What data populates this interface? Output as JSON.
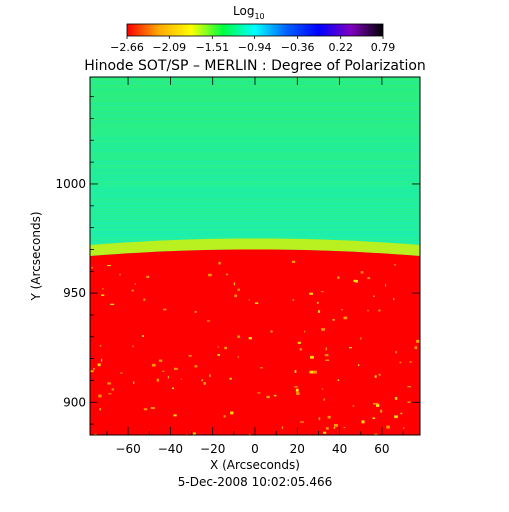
{
  "colorbar": {
    "label_main": "Log",
    "label_sub": "10",
    "ticks": [
      "-2.66",
      "-2.09",
      "-1.51",
      "-0.94",
      "-0.36",
      "0.22",
      "0.79"
    ],
    "range": [
      -2.66,
      0.79
    ],
    "stops": [
      "#ff0000",
      "#ffaa00",
      "#ffff00",
      "#00ff40",
      "#00ffff",
      "#0060ff",
      "#0000ff",
      "#8000c0",
      "#000000"
    ]
  },
  "chart_data": {
    "type": "heatmap",
    "title": "Hinode SOT/SP – MERLIN : Degree of Polarization",
    "xlabel": "X (Arcseconds)",
    "ylabel": "Y (Arcseconds)",
    "xlim": [
      -78,
      78
    ],
    "ylim": [
      885,
      1049
    ],
    "xticks": [
      -60,
      -40,
      -20,
      0,
      20,
      40,
      60
    ],
    "yticks": [
      900,
      950,
      1000
    ],
    "limb": {
      "y_at_x_center": 970,
      "y_at_x_edges": 967
    },
    "regions": [
      {
        "name": "off-limb",
        "log10_value": -0.8,
        "color": "#1cf09a"
      },
      {
        "name": "disk",
        "log10_value": -2.66,
        "color": "#ff0000"
      }
    ],
    "date_label": "5-Dec-2008 10:02:05.466"
  }
}
